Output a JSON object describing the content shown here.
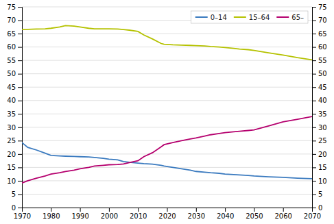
{
  "chart_data": {
    "type": "line",
    "x": [
      1970,
      1972,
      1975,
      1978,
      1980,
      1983,
      1985,
      1988,
      1990,
      1993,
      1995,
      1998,
      2000,
      2003,
      2005,
      2007,
      2010,
      2012,
      2015,
      2018,
      2019,
      2022,
      2025,
      2028,
      2030,
      2033,
      2035,
      2038,
      2040,
      2043,
      2045,
      2048,
      2050,
      2055,
      2060,
      2065,
      2070
    ],
    "series": [
      {
        "name": "0–14",
        "color": "#3a7abf",
        "values": [
          24.3,
          22.5,
          21.5,
          20.3,
          19.5,
          19.3,
          19.2,
          19.1,
          19.0,
          18.9,
          18.7,
          18.4,
          18.1,
          17.8,
          17.2,
          16.9,
          16.6,
          16.4,
          16.2,
          15.8,
          15.5,
          15.0,
          14.5,
          14.0,
          13.5,
          13.2,
          13.0,
          12.8,
          12.5,
          12.3,
          12.2,
          12.0,
          11.8,
          11.5,
          11.3,
          11.0,
          10.8
        ]
      },
      {
        "name": "15–64",
        "color": "#b5c200",
        "values": [
          66.5,
          66.6,
          66.7,
          66.8,
          67.0,
          67.5,
          68.0,
          67.8,
          67.5,
          67.0,
          66.8,
          66.8,
          66.8,
          66.7,
          66.5,
          66.3,
          65.8,
          64.5,
          63.0,
          61.3,
          61.0,
          60.8,
          60.7,
          60.6,
          60.5,
          60.4,
          60.2,
          60.0,
          59.8,
          59.5,
          59.2,
          59.0,
          58.7,
          57.8,
          57.0,
          56.0,
          55.2
        ]
      },
      {
        "name": "65–",
        "color": "#b5006e",
        "values": [
          9.2,
          10.0,
          11.0,
          11.8,
          12.5,
          13.0,
          13.5,
          14.0,
          14.5,
          15.0,
          15.5,
          15.8,
          16.0,
          16.1,
          16.3,
          16.8,
          17.5,
          19.0,
          20.5,
          22.7,
          23.5,
          24.3,
          25.0,
          25.6,
          26.0,
          26.7,
          27.2,
          27.7,
          28.0,
          28.3,
          28.5,
          28.8,
          29.0,
          30.5,
          32.0,
          33.0,
          34.0
        ]
      }
    ],
    "xlim": [
      1970,
      2070
    ],
    "xticks": [
      1970,
      1980,
      1990,
      2000,
      2010,
      2020,
      2030,
      2040,
      2050,
      2060,
      2070
    ],
    "ylim": [
      0,
      75
    ],
    "yticks": [
      0,
      5,
      10,
      15,
      20,
      25,
      30,
      35,
      40,
      45,
      50,
      55,
      60,
      65,
      70,
      75
    ],
    "y2lim": [
      0,
      75
    ],
    "y2ticks": [
      0,
      5,
      10,
      15,
      20,
      25,
      30,
      35,
      40,
      45,
      50,
      55,
      60,
      65,
      70,
      75
    ],
    "grid": true,
    "legend": "upper right"
  }
}
